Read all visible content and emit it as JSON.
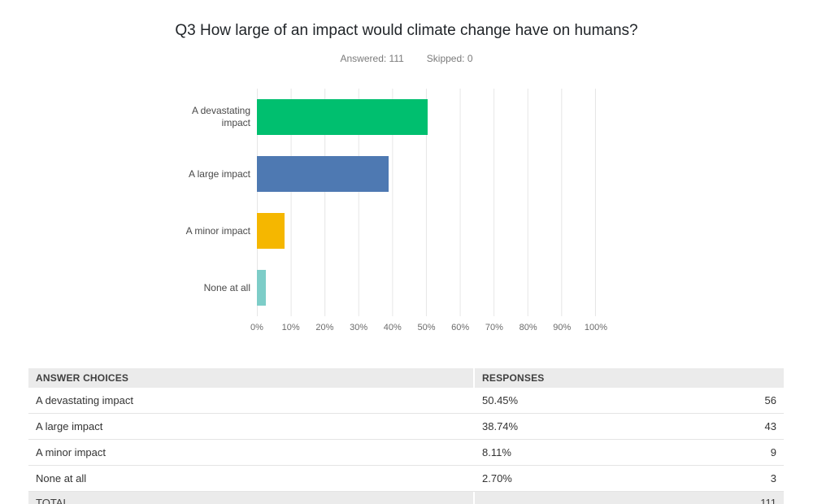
{
  "header": {
    "title": "Q3 How large of an impact would climate change have on humans?",
    "answered_label": "Answered: 111",
    "skipped_label": "Skipped: 0"
  },
  "chart_data": {
    "type": "bar",
    "orientation": "horizontal",
    "title": "Q3 How large of an impact would climate change have on humans?",
    "categories": [
      "A devastating impact",
      "A large impact",
      "A minor impact",
      "None at all"
    ],
    "values": [
      50.45,
      38.74,
      8.11,
      2.7
    ],
    "colors": [
      "#00BF6F",
      "#4E79B2",
      "#F5B700",
      "#7DCDC8"
    ],
    "xlim": [
      0,
      100
    ],
    "x_tick_labels": [
      "0%",
      "10%",
      "20%",
      "30%",
      "40%",
      "50%",
      "60%",
      "70%",
      "80%",
      "90%",
      "100%"
    ],
    "grid": true,
    "legend": "none"
  },
  "table": {
    "headers": [
      "ANSWER CHOICES",
      "RESPONSES"
    ],
    "rows": [
      {
        "choice": "A devastating impact",
        "percent": "50.45%",
        "count": "56"
      },
      {
        "choice": "A large impact",
        "percent": "38.74%",
        "count": "43"
      },
      {
        "choice": "A minor impact",
        "percent": "8.11%",
        "count": "9"
      },
      {
        "choice": "None at all",
        "percent": "2.70%",
        "count": "3"
      }
    ],
    "total_label": "TOTAL",
    "total_count": "111"
  }
}
